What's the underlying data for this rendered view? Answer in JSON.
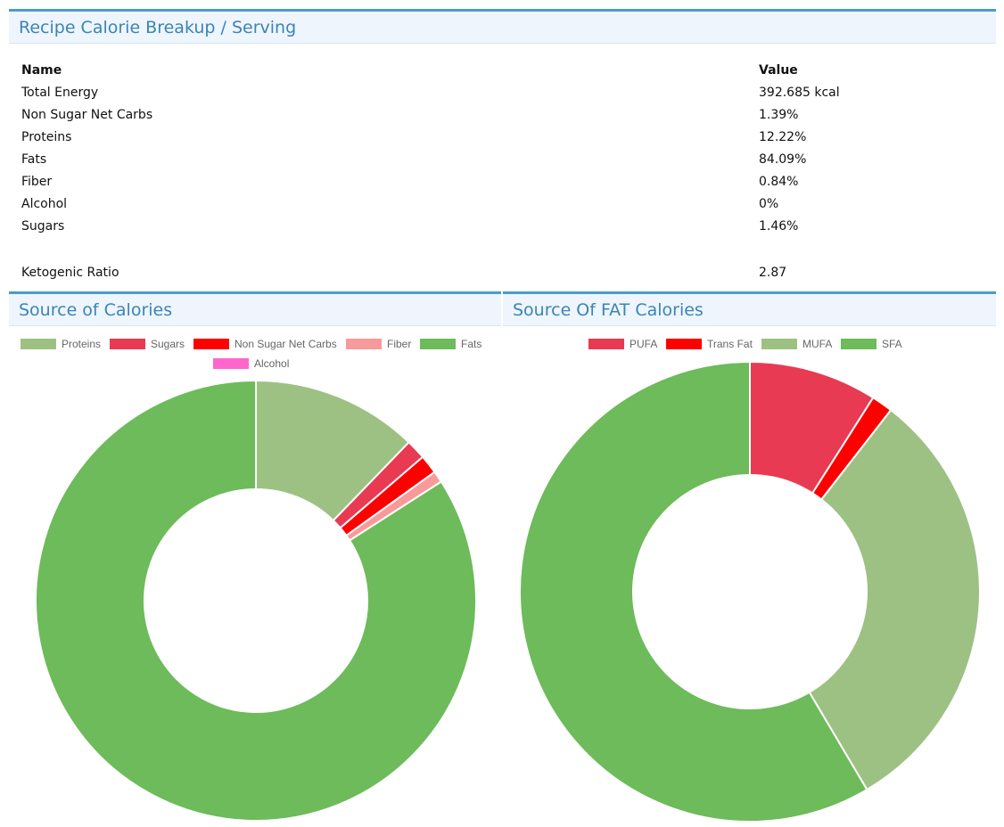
{
  "breakup": {
    "title": "Recipe Calorie Breakup / Serving",
    "col_name": "Name",
    "col_value": "Value",
    "rows": [
      {
        "name": "Total Energy",
        "value": "392.685 kcal"
      },
      {
        "name": "Non Sugar Net Carbs",
        "value": "1.39%"
      },
      {
        "name": "Proteins",
        "value": "12.22%"
      },
      {
        "name": "Fats",
        "value": "84.09%"
      },
      {
        "name": "Fiber",
        "value": "0.84%"
      },
      {
        "name": "Alcohol",
        "value": "0%"
      },
      {
        "name": "Sugars",
        "value": "1.46%"
      }
    ],
    "keto": {
      "name": "Ketogenic Ratio",
      "value": "2.87"
    }
  },
  "calories_panel": {
    "title": "Source of Calories"
  },
  "fat_panel": {
    "title": "Source Of FAT Calories"
  },
  "chart_data": [
    {
      "type": "pie",
      "donut": true,
      "legend_position": "top",
      "legend": [
        "Proteins",
        "Sugars",
        "Non Sugar Net Carbs",
        "Fiber",
        "Fats",
        "Alcohol"
      ],
      "colors": [
        "#9dc183",
        "#e83a52",
        "#ff0000",
        "#f89a9a",
        "#6dbb5a",
        "#ff66cc"
      ],
      "values": [
        12.22,
        1.46,
        1.39,
        0.84,
        84.09,
        0
      ]
    },
    {
      "type": "pie",
      "donut": true,
      "legend_position": "top",
      "legend": [
        "PUFA",
        "Trans Fat",
        "MUFA",
        "SFA"
      ],
      "colors": [
        "#e83a52",
        "#ff0000",
        "#9dc183",
        "#6dbb5a"
      ],
      "values": [
        9.0,
        1.5,
        31.0,
        58.5
      ]
    }
  ]
}
